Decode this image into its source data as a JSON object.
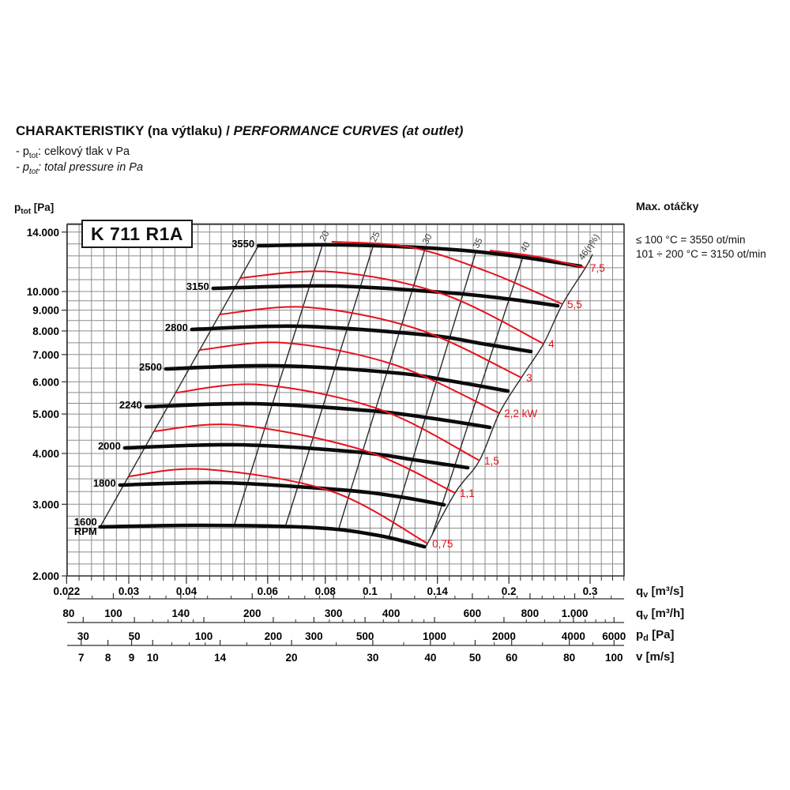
{
  "header": {
    "title_cs": "CHARAKTERISTIKY (na výtlaku)",
    "title_sep": " / ",
    "title_en": "PERFORMANCE CURVES (at outlet)",
    "note1": {
      "prefix": "- p",
      "sub": "tot",
      "text": ": celkový tlak v Pa"
    },
    "note2": {
      "prefix": "- p",
      "sub": "tot",
      "text": ": total pressure in Pa"
    }
  },
  "model_badge": "K 711 R1A",
  "y_unit": {
    "base": "p",
    "sub": "tot",
    "rest": " [Pa]"
  },
  "side_note": {
    "heading": "Max. otáčky",
    "line1": "≤ 100 °C = 3550 ot/min",
    "line2": "101 ÷ 200 °C = 3150 ot/min"
  },
  "chart_data": {
    "type": "line",
    "title": "K 711 R1A",
    "x_scale": "log",
    "y_scale": "log",
    "x_range_m3s": [
      0.022,
      0.355
    ],
    "y_range_pa": [
      2000,
      14700
    ],
    "grid": "log-log minor grid",
    "y_axis": {
      "unit_parts": {
        "base": "p",
        "sub": "tot",
        "rest": " [Pa]"
      },
      "labeled": [
        {
          "v": 14000,
          "t": "14.000"
        },
        {
          "v": 10000,
          "t": "10.000"
        },
        {
          "v": 9000,
          "t": "9.000"
        },
        {
          "v": 8000,
          "t": "8.000"
        },
        {
          "v": 7000,
          "t": "7.000"
        },
        {
          "v": 6000,
          "t": "6.000"
        },
        {
          "v": 5000,
          "t": "5.000"
        },
        {
          "v": 4000,
          "t": "4.000"
        },
        {
          "v": 3000,
          "t": "3.000"
        },
        {
          "v": 2000,
          "t": "2.000"
        }
      ]
    },
    "x_axes": [
      {
        "id": "qv_m3s",
        "unit_parts": {
          "base": "q",
          "sub": "v",
          "rest": " [m³/s]"
        },
        "labeled": [
          {
            "v": 0.022,
            "t": "0.022"
          },
          {
            "v": 0.03,
            "t": "0.03"
          },
          {
            "v": 0.04,
            "t": "0.04"
          },
          {
            "v": 0.06,
            "t": "0.06"
          },
          {
            "v": 0.08,
            "t": "0.08"
          },
          {
            "v": 0.1,
            "t": "0.1"
          },
          {
            "v": 0.14,
            "t": "0.14"
          },
          {
            "v": 0.2,
            "t": "0.2"
          },
          {
            "v": 0.3,
            "t": "0.3"
          }
        ],
        "minor": []
      },
      {
        "id": "qv_m3h",
        "unit_parts": {
          "base": "q",
          "sub": "v",
          "rest": " [m³/h]"
        },
        "labeled": [
          {
            "v": 80,
            "t": "80"
          },
          {
            "v": 100,
            "t": "100"
          },
          {
            "v": 140,
            "t": "140"
          },
          {
            "v": 200,
            "t": "200"
          },
          {
            "v": 300,
            "t": "300"
          },
          {
            "v": 400,
            "t": "400"
          },
          {
            "v": 600,
            "t": "600"
          },
          {
            "v": 800,
            "t": "800"
          },
          {
            "v": 1000,
            "t": "1.000"
          }
        ],
        "minor": [
          90,
          110,
          120,
          130,
          150,
          160,
          180,
          220,
          240,
          260,
          280,
          350,
          450,
          500,
          550,
          650,
          700,
          750,
          850,
          900,
          950,
          1100,
          1200
        ]
      },
      {
        "id": "pd_pa",
        "unit_parts": {
          "base": "p",
          "sub": "d",
          "rest": " [Pa]"
        },
        "labeled": [
          {
            "v": 30,
            "t": "30"
          },
          {
            "v": 50,
            "t": "50"
          },
          {
            "v": 100,
            "t": "100"
          },
          {
            "v": 200,
            "t": "200"
          },
          {
            "v": 300,
            "t": "300"
          },
          {
            "v": 500,
            "t": "500"
          },
          {
            "v": 1000,
            "t": "1000"
          },
          {
            "v": 2000,
            "t": "2000"
          },
          {
            "v": 4000,
            "t": "4000"
          },
          {
            "v": 6000,
            "t": "6000"
          }
        ],
        "minor": [
          40,
          60,
          70,
          80,
          90,
          150,
          250,
          350,
          400,
          450,
          600,
          700,
          800,
          900,
          1500,
          2500,
          3000,
          3500,
          4500,
          5000,
          5500
        ]
      },
      {
        "id": "v_ms",
        "unit_parts": {
          "base": "v",
          "sub": "",
          "rest": " [m/s]"
        },
        "labeled": [
          {
            "v": 7,
            "t": "7"
          },
          {
            "v": 8,
            "t": "8"
          },
          {
            "v": 9,
            "t": "9"
          },
          {
            "v": 10,
            "t": "10"
          },
          {
            "v": 14,
            "t": "14"
          },
          {
            "v": 20,
            "t": "20"
          },
          {
            "v": 30,
            "t": "30"
          },
          {
            "v": 40,
            "t": "40"
          },
          {
            "v": 50,
            "t": "50"
          },
          {
            "v": 60,
            "t": "60"
          },
          {
            "v": 80,
            "t": "80"
          },
          {
            "v": 100,
            "t": "100"
          }
        ],
        "minor": [
          11,
          12,
          13,
          16,
          18,
          25,
          35,
          45,
          55,
          70,
          90
        ]
      }
    ],
    "rpm_curves": [
      {
        "rpm": 1600,
        "label": "1600",
        "label2": "RPM",
        "points_q_p": [
          [
            0.026,
            2639
          ],
          [
            0.0423,
            2663
          ],
          [
            0.0764,
            2627
          ],
          [
            0.1047,
            2512
          ],
          [
            0.1311,
            2360
          ]
        ]
      },
      {
        "rpm": 1800,
        "label": "1800",
        "points_q_p": [
          [
            0.0287,
            3344
          ],
          [
            0.0476,
            3390
          ],
          [
            0.086,
            3257
          ],
          [
            0.1133,
            3142
          ],
          [
            0.1447,
            2991
          ]
        ]
      },
      {
        "rpm": 2000,
        "label": "2000",
        "points_q_p": [
          [
            0.0294,
            4127
          ],
          [
            0.0515,
            4201
          ],
          [
            0.093,
            4035
          ],
          [
            0.1275,
            3843
          ],
          [
            0.1628,
            3690
          ]
        ]
      },
      {
        "rpm": 2240,
        "label": "2240",
        "points_q_p": [
          [
            0.0327,
            5207
          ],
          [
            0.0557,
            5301
          ],
          [
            0.1007,
            5092
          ],
          [
            0.138,
            4869
          ],
          [
            0.1818,
            4636
          ]
        ]
      },
      {
        "rpm": 2500,
        "label": "2500",
        "points_q_p": [
          [
            0.0361,
            6454
          ],
          [
            0.0627,
            6570
          ],
          [
            0.1133,
            6311
          ],
          [
            0.1523,
            6007
          ],
          [
            0.1991,
            5694
          ]
        ]
      },
      {
        "rpm": 2800,
        "label": "2800",
        "points_q_p": [
          [
            0.0411,
            8069
          ],
          [
            0.0706,
            8215
          ],
          [
            0.1326,
            7820
          ],
          [
            0.1748,
            7447
          ],
          [
            0.2232,
            7121
          ]
        ]
      },
      {
        "rpm": 3150,
        "label": "3150",
        "points_q_p": [
          [
            0.0457,
            10184
          ],
          [
            0.0826,
            10321
          ],
          [
            0.1435,
            9958
          ],
          [
            0.1967,
            9607
          ],
          [
            0.2552,
            9229
          ]
        ]
      },
      {
        "rpm": 3550,
        "label": "3550",
        "points_q_p": [
          [
            0.0573,
            12964
          ],
          [
            0.086,
            13022
          ],
          [
            0.1435,
            12734
          ],
          [
            0.2047,
            12231
          ],
          [
            0.2861,
            11541
          ]
        ]
      }
    ],
    "power_curves_kw": [
      {
        "kw": 0.75,
        "label": "0,75",
        "points_q_p": [
          [
            0.03,
            3513
          ],
          [
            0.044,
            3657
          ],
          [
            0.0826,
            3227
          ],
          [
            0.1332,
            2402
          ]
        ]
      },
      {
        "kw": 1.1,
        "label": "1,1",
        "points_q_p": [
          [
            0.034,
            4535
          ],
          [
            0.0515,
            4698
          ],
          [
            0.0968,
            4072
          ],
          [
            0.1529,
            3199
          ]
        ]
      },
      {
        "kw": 1.5,
        "label": "1,5",
        "points_q_p": [
          [
            0.038,
            5643
          ],
          [
            0.058,
            5901
          ],
          [
            0.1047,
            5137
          ],
          [
            0.1727,
            3843
          ]
        ]
      },
      {
        "kw": 2.2,
        "label": "2,2 kW",
        "points_q_p": [
          [
            0.0428,
            7185
          ],
          [
            0.0652,
            7480
          ],
          [
            0.1133,
            6600
          ],
          [
            0.1907,
            5024
          ]
        ]
      },
      {
        "kw": 3,
        "label": "3",
        "points_q_p": [
          [
            0.0472,
            8785
          ],
          [
            0.0734,
            9147
          ],
          [
            0.1275,
            8069
          ],
          [
            0.2129,
            6144
          ]
        ]
      },
      {
        "kw": 4,
        "label": "4",
        "points_q_p": [
          [
            0.0521,
            10791
          ],
          [
            0.0826,
            11185
          ],
          [
            0.1435,
            9869
          ],
          [
            0.2378,
            7447
          ]
        ]
      },
      {
        "kw": 5.5,
        "label": "5,5",
        "points_q_p": [
          [
            0.0826,
            13255
          ],
          [
            0.1226,
            12849
          ],
          [
            0.1818,
            11135
          ],
          [
            0.2613,
            9312
          ]
        ]
      },
      {
        "kw": 7.5,
        "label": "7,5",
        "points_q_p": [
          [
            0.1818,
            12619
          ],
          [
            0.2304,
            12177
          ],
          [
            0.293,
            11438
          ]
        ]
      }
    ],
    "efficiency_lines": [
      {
        "eta": 20,
        "label": "20",
        "points_q_p": [
          [
            0.0788,
            12964
          ],
          [
            0.0507,
            2651
          ]
        ]
      },
      {
        "eta": 25,
        "label": "25",
        "points_q_p": [
          [
            0.1015,
            12906
          ],
          [
            0.0655,
            2639
          ]
        ]
      },
      {
        "eta": 30,
        "label": "30",
        "points_q_p": [
          [
            0.1316,
            12734
          ],
          [
            0.0853,
            2581
          ]
        ]
      },
      {
        "eta": 35,
        "label": "35",
        "points_q_p": [
          [
            0.1694,
            12453
          ],
          [
            0.1098,
            2479
          ]
        ]
      },
      {
        "eta": 40,
        "label": "40",
        "points_q_p": [
          [
            0.2146,
            12177
          ],
          [
            0.1364,
            2523
          ]
        ]
      }
    ],
    "left_boundary": {
      "points_q_p": [
        [
          0.026,
          2639
        ],
        [
          0.0573,
          12964
        ]
      ]
    },
    "right_boundary": {
      "label": "46(η%)",
      "points_q_p": [
        [
          0.1316,
          2339
        ],
        [
          0.1529,
          3199
        ],
        [
          0.1727,
          3843
        ],
        [
          0.1907,
          5024
        ],
        [
          0.2129,
          6144
        ],
        [
          0.2378,
          7447
        ],
        [
          0.2613,
          9312
        ],
        [
          0.293,
          11438
        ],
        [
          0.3036,
          12342
        ]
      ]
    },
    "colors": {
      "curve_black": "#0b0b0b",
      "power_red": "#e8101c",
      "grid_gray": "#8b8b8b",
      "frame": "#2f2f2f",
      "eff_line": "#2a2a2a",
      "eff_label": "#3c3c3c"
    }
  }
}
